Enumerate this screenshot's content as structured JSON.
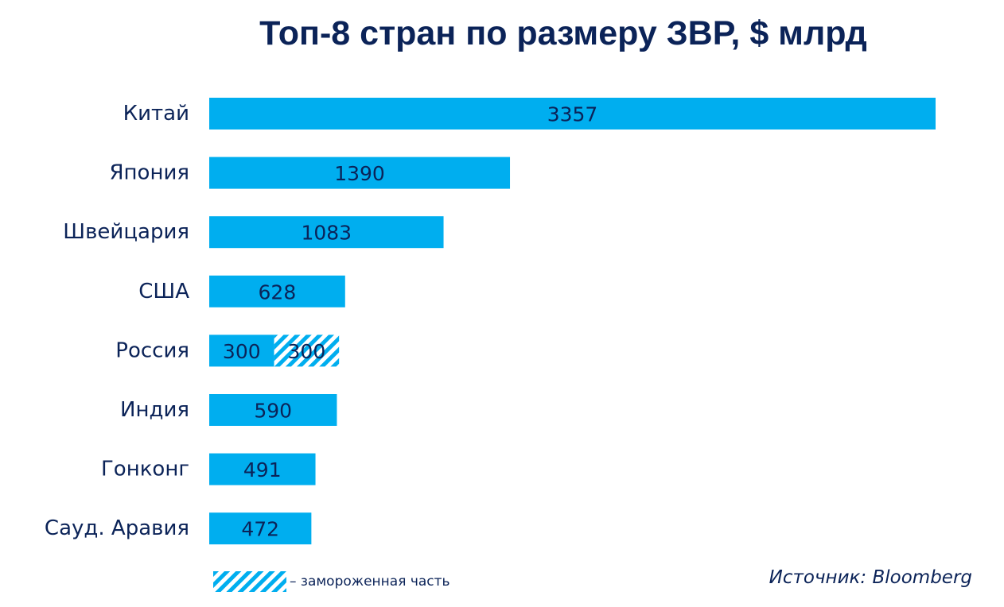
{
  "chart_data": {
    "type": "bar",
    "orientation": "horizontal",
    "title": "Топ-8 стран по размеру ЗВР, $ млрд",
    "xlabel": "",
    "ylabel": "",
    "categories": [
      "Китай",
      "Япония",
      "Швейцария",
      "США",
      "Россия",
      "Индия",
      "Гонконг",
      "Сауд. Аравия"
    ],
    "series": [
      {
        "values": [
          3357,
          1390,
          1083,
          628,
          300,
          590,
          491,
          472
        ],
        "color": "#00aeef",
        "pattern": "solid"
      },
      {
        "name": "– замороженная часть",
        "values": [
          0,
          0,
          0,
          0,
          300,
          0,
          0,
          0
        ],
        "color": "#00aeef",
        "pattern": "hatched"
      }
    ],
    "stacked": true,
    "xlim": [
      0,
      3357
    ],
    "grid": false,
    "legend_position": "bottom-left"
  },
  "colors": {
    "bar": "#00aeef",
    "text": "#0b2358",
    "background": "#ffffff"
  },
  "source": "Источник: Bloomberg"
}
